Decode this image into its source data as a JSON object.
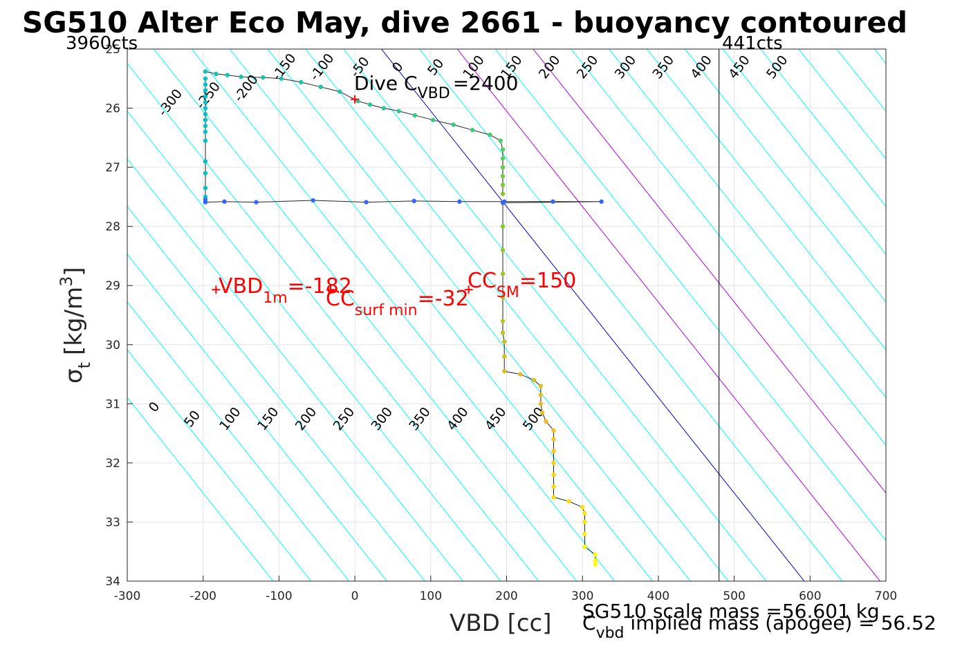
{
  "chart_data": {
    "type": "scatter",
    "title": "SG510 Alter Eco May, dive 2661 - buoyancy contoured",
    "xlabel": "VBD [cc]",
    "ylabel_symbol": "σ",
    "ylabel_sub": "t",
    "ylabel_unit": "[kg/m",
    "ylabel_sup": "3",
    "ylabel_close": "]",
    "xlim": [
      -300,
      700
    ],
    "ylim": [
      25,
      34
    ],
    "y_reversed": true,
    "grid": true,
    "xticks": [
      "-300",
      "-200",
      "-100",
      "0",
      "100",
      "200",
      "300",
      "400",
      "500",
      "600",
      "700"
    ],
    "yticks": [
      "25",
      "26",
      "27",
      "28",
      "29",
      "30",
      "31",
      "32",
      "33",
      "34"
    ],
    "corner_left": "3960cts",
    "corner_right": "441cts",
    "vbd_limit_line_x": 480,
    "contour_levels": [
      -300,
      -250,
      -200,
      -150,
      -100,
      -50,
      0,
      50,
      100,
      150,
      200,
      250,
      300,
      350,
      400,
      450,
      500
    ],
    "contour_colors": {
      "default": "#00ffff",
      "zero": "#0000cc",
      "highlight": "#b000e6"
    },
    "contour_label_text": [
      "-300",
      "-250",
      "-200",
      "-150",
      "-100",
      "-50",
      "0",
      "50",
      "100",
      "150",
      "200",
      "250",
      "300",
      "350",
      "400",
      "450",
      "500"
    ],
    "annotations": {
      "dive_main": "Dive C",
      "dive_sub": "VBD",
      "dive_value": "=2400",
      "vbd1m_main": "VBD",
      "vbd1m_sub": "1m",
      "vbd1m_value": "=-182",
      "ccsurf_main": "CC",
      "ccsurf_sub": "surf min",
      "ccsurf_value": "=-32",
      "ccsm_main": "CC",
      "ccsm_sub": "SM",
      "ccsm_value": "=150",
      "mass_line1": "SG510 scale mass =56.601 kg",
      "mass_main": "C",
      "mass_sub": "vbd",
      "mass_line2": " implied mass (apogee) = 56.52"
    },
    "markers": [
      {
        "x": 0,
        "y": 25.85
      },
      {
        "x": -183,
        "y": 29.07
      },
      {
        "x": -32,
        "y": 29.07
      },
      {
        "x": 150,
        "y": 29.07
      }
    ],
    "series": [
      {
        "points": [
          [
            -197,
            25.5
          ],
          [
            -197,
            25.6
          ],
          [
            -197,
            25.7
          ],
          [
            -197,
            25.8
          ],
          [
            -197,
            25.9
          ],
          [
            -197,
            26.0
          ],
          [
            -197,
            26.1
          ],
          [
            -197,
            26.2
          ],
          [
            -197,
            26.3
          ],
          [
            -197,
            26.4
          ],
          [
            -197,
            26.55
          ],
          [
            -197,
            26.9
          ],
          [
            -197,
            27.1
          ],
          [
            -197,
            27.35
          ],
          [
            -197,
            27.5
          ],
          [
            -197,
            27.55
          ],
          [
            -197,
            27.59
          ],
          [
            -172,
            27.58
          ],
          [
            -130,
            27.59
          ],
          [
            -55,
            27.56
          ],
          [
            15,
            27.59
          ],
          [
            78,
            27.57
          ],
          [
            138,
            27.58
          ],
          [
            197,
            27.58
          ],
          [
            261,
            27.58
          ],
          [
            325,
            27.58
          ],
          [
            195,
            27.6
          ],
          [
            195,
            28.0
          ],
          [
            195,
            28.4
          ],
          [
            195,
            28.8
          ],
          [
            195,
            29.2
          ],
          [
            195,
            29.6
          ],
          [
            195,
            29.8
          ],
          [
            197,
            29.95
          ],
          [
            197,
            30.2
          ],
          [
            197,
            30.45
          ],
          [
            218,
            30.5
          ],
          [
            236,
            30.6
          ],
          [
            245,
            30.7
          ],
          [
            245,
            30.85
          ],
          [
            245,
            31.0
          ],
          [
            247,
            31.15
          ],
          [
            252,
            31.3
          ],
          [
            262,
            31.45
          ],
          [
            262,
            31.6
          ],
          [
            262,
            31.8
          ],
          [
            262,
            32.0
          ],
          [
            262,
            32.2
          ],
          [
            262,
            32.4
          ],
          [
            262,
            32.58
          ],
          [
            282,
            32.65
          ],
          [
            300,
            32.75
          ],
          [
            303,
            32.85
          ],
          [
            303,
            33.0
          ],
          [
            303,
            33.2
          ],
          [
            303,
            33.42
          ],
          [
            317,
            33.55
          ],
          [
            317,
            33.65
          ],
          [
            317,
            33.72
          ]
        ]
      },
      {
        "points": [
          [
            -197,
            25.38
          ],
          [
            -183,
            25.42
          ],
          [
            -168,
            25.44
          ],
          [
            -150,
            25.47
          ],
          [
            -121,
            25.48
          ],
          [
            -97,
            25.5
          ],
          [
            -71,
            25.56
          ],
          [
            -45,
            25.64
          ],
          [
            -20,
            25.72
          ],
          [
            4,
            25.88
          ],
          [
            20,
            25.94
          ],
          [
            38,
            26.0
          ],
          [
            58,
            26.05
          ],
          [
            79,
            26.12
          ],
          [
            103,
            26.2
          ],
          [
            130,
            26.28
          ],
          [
            155,
            26.37
          ],
          [
            178,
            26.45
          ],
          [
            192,
            26.55
          ],
          [
            195,
            26.7
          ],
          [
            195,
            26.85
          ],
          [
            195,
            27.0
          ],
          [
            195,
            27.15
          ],
          [
            195,
            27.3
          ],
          [
            195,
            27.45
          ]
        ]
      }
    ]
  }
}
